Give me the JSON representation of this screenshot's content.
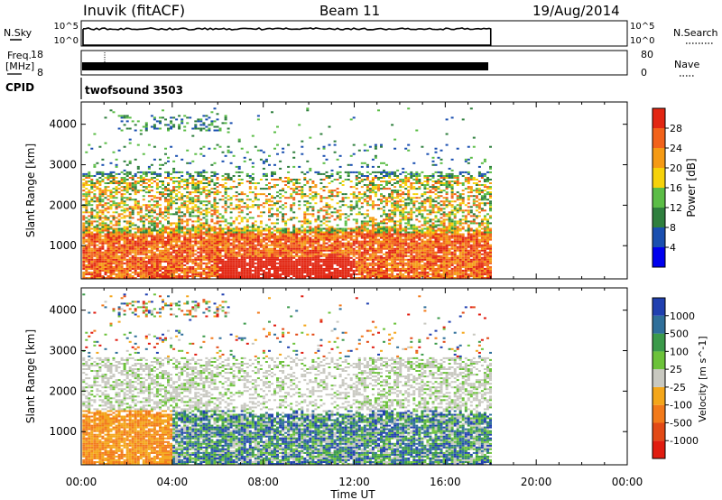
{
  "header": {
    "station": "Inuvik (fitACF)",
    "beam": "Beam 11",
    "date": "19/Aug/2014"
  },
  "strips": {
    "nsky": {
      "label": "N.Sky",
      "left_ticks": [
        "10^5",
        "10^0"
      ],
      "right_label": "N.Search",
      "right_ticks": [
        "10^5",
        "10^0"
      ]
    },
    "freq": {
      "label": "Freq.",
      "unit": "[MHz]",
      "left_ticks": [
        "18",
        "8"
      ],
      "right_label": "Nave",
      "right_ticks": [
        "80",
        "0"
      ]
    },
    "cpid": {
      "label": "CPID",
      "value": "twofsound 3503"
    }
  },
  "chart_data": [
    {
      "type": "heatmap",
      "name": "power",
      "ylabel": "Slant Range [km]",
      "xlabel": "Time UT",
      "x_ticks": [
        "00:00",
        "04:00",
        "08:00",
        "12:00",
        "16:00",
        "20:00",
        "00:00"
      ],
      "xlim_hours": [
        0,
        24
      ],
      "data_end_hour": 18,
      "ylim": [
        180,
        4550
      ],
      "y_ticks": [
        1000,
        2000,
        3000,
        4000
      ],
      "colorbar": {
        "label": "Power [dB]",
        "ticks": [
          "4",
          "8",
          "12",
          "16",
          "20",
          "24",
          "28"
        ],
        "colors": [
          "#0000ee",
          "#1a4fb0",
          "#2f7f3e",
          "#5bbd46",
          "#f6d20a",
          "#f59a14",
          "#f2621a",
          "#e22612"
        ]
      }
    },
    {
      "type": "heatmap",
      "name": "velocity",
      "ylabel": "Slant Range [km]",
      "xlabel": "Time UT",
      "x_ticks": [
        "00:00",
        "04:00",
        "08:00",
        "12:00",
        "16:00",
        "20:00",
        "00:00"
      ],
      "xlim_hours": [
        0,
        24
      ],
      "data_end_hour": 18,
      "ylim": [
        180,
        4550
      ],
      "y_ticks": [
        1000,
        2000,
        3000,
        4000
      ],
      "colorbar": {
        "label": "Velocity [m s^-1]",
        "ticks": [
          "1000",
          "500",
          "100",
          "25",
          "-25",
          "-100",
          "-500",
          "-1000"
        ],
        "colors": [
          "#2040b0",
          "#2f6f9a",
          "#3b9a4a",
          "#6cc23a",
          "#c8c8c0",
          "#f4a61a",
          "#f27a1a",
          "#e24a16",
          "#e01c10"
        ]
      }
    }
  ]
}
